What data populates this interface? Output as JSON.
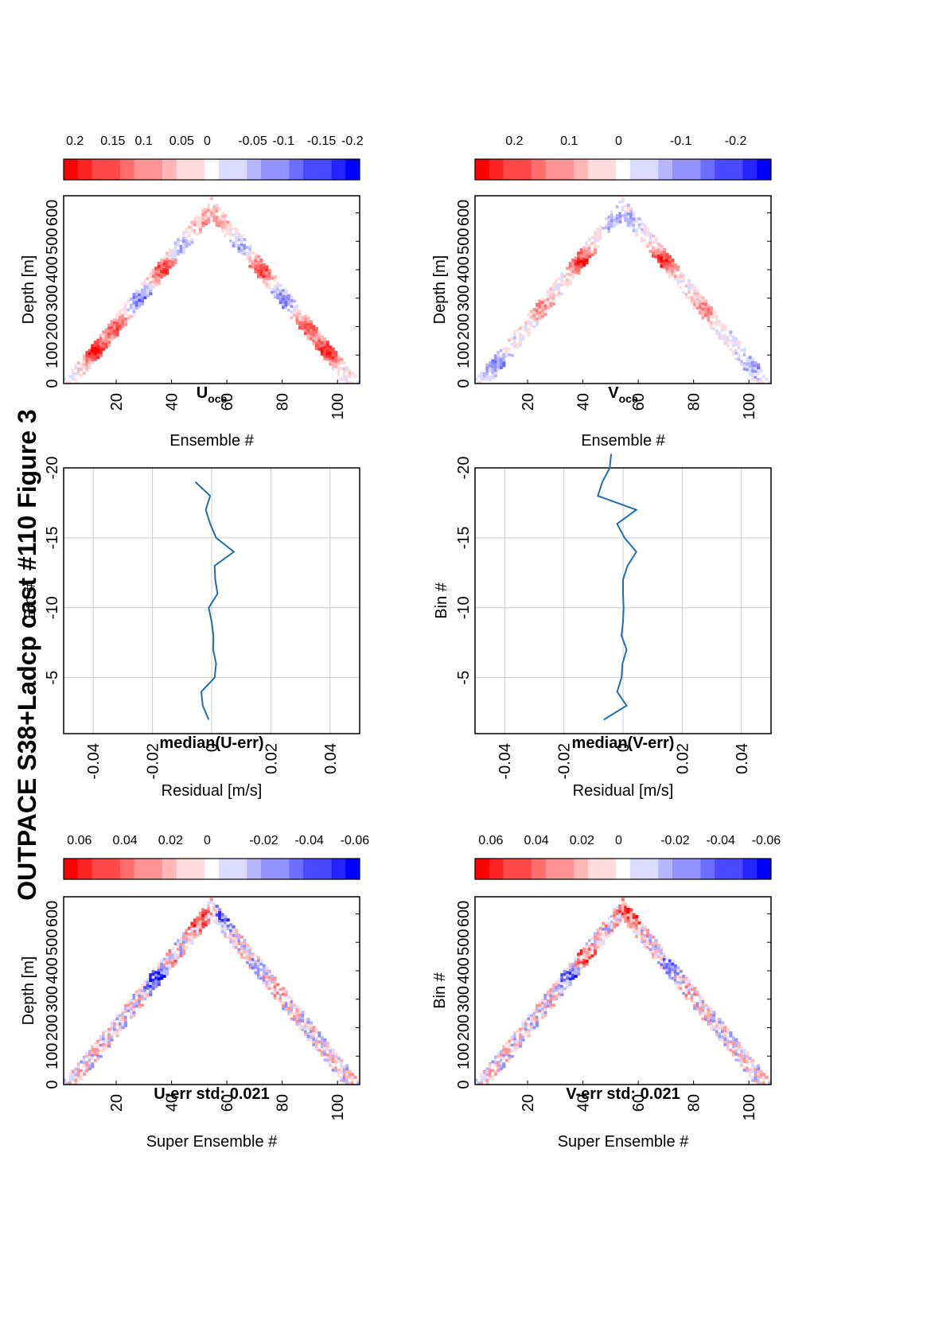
{
  "figure_title": "OUTPACE S38+Ladcp cast #110  Figure 3",
  "chart_data": [
    {
      "id": "u_err",
      "type": "heatmap",
      "title": "U-err std: 0.021",
      "xlabel": "Super Ensemble #",
      "ylabel": "Depth [m]",
      "xlim": [
        1,
        108
      ],
      "ylim": [
        0,
        660
      ],
      "xticks": [
        "20",
        "40",
        "60",
        "80",
        "100"
      ],
      "yticks": [
        "0",
        "100",
        "200",
        "300",
        "400",
        "500",
        "600"
      ],
      "colorbar": {
        "range": [
          -0.065,
          0.065
        ],
        "ticks": [
          "0.06",
          "0.04",
          "0.02",
          "0",
          "-0.02",
          "-0.04",
          "-0.06"
        ],
        "colormap": "red-white-blue"
      },
      "profile": {
        "turn_ensemble": 54,
        "max_depth": 650,
        "band_width_m": 65
      },
      "features": [
        {
          "x": 36,
          "y": 360,
          "v": -0.06
        },
        {
          "x": 45,
          "y": 400,
          "v": 0.05
        },
        {
          "x": 78,
          "y": 420,
          "v": -0.065
        },
        {
          "x": 80,
          "y": 390,
          "v": 0.06
        },
        {
          "x": 60,
          "y": 590,
          "v": -0.05
        },
        {
          "x": 50,
          "y": 580,
          "v": 0.05
        }
      ]
    },
    {
      "id": "median_u",
      "type": "line",
      "title": "median(U-err)",
      "xlabel": "Residual [m/s]",
      "ylabel": "Bin #",
      "xlim": [
        -0.05,
        0.05
      ],
      "ylim": [
        -20,
        -1
      ],
      "xticks": [
        "-0.04",
        "-0.02",
        "0",
        "0.02",
        "0.04"
      ],
      "yticks": [
        "-5",
        "-10",
        "-15",
        "-20"
      ],
      "x": [
        -0.001,
        -0.003,
        -0.0035,
        0.001,
        0.0015,
        0.0005,
        0.0006,
        0.0,
        -0.001,
        0.002,
        0.0012,
        0.001,
        0.0075,
        0.0015,
        -0.0005,
        -0.002,
        -0.0005,
        -0.0055
      ],
      "y": [
        -2,
        -3,
        -4,
        -5,
        -6,
        -7,
        -8,
        -9,
        -10,
        -11,
        -12,
        -13,
        -14,
        -15,
        -16,
        -17,
        -18,
        -19
      ]
    },
    {
      "id": "u_oce",
      "type": "heatmap",
      "title": "U",
      "title_sub": "oce",
      "xlabel": "Ensemble #",
      "ylabel": "Depth [m]",
      "xlim": [
        1,
        108
      ],
      "ylim": [
        0,
        660
      ],
      "xticks": [
        "20",
        "40",
        "60",
        "80",
        "100"
      ],
      "yticks": [
        "0",
        "100",
        "200",
        "300",
        "400",
        "500",
        "600"
      ],
      "colorbar": {
        "range": [
          -0.215,
          0.215
        ],
        "ticks": [
          "0.2",
          "0.15",
          "0.1",
          "0.05",
          "0",
          "-0.05",
          "-0.1",
          "-0.15",
          "-0.2"
        ],
        "colormap": "red-white-blue"
      },
      "profile": {
        "turn_ensemble": 54,
        "max_depth": 650,
        "band_width_m": 65
      },
      "features": [
        {
          "x": 12,
          "y": 110,
          "v": 0.2
        },
        {
          "x": 96,
          "y": 110,
          "v": 0.19
        },
        {
          "x": 21,
          "y": 190,
          "v": 0.15
        },
        {
          "x": 88,
          "y": 190,
          "v": 0.15
        },
        {
          "x": 30,
          "y": 285,
          "v": -0.12
        },
        {
          "x": 78,
          "y": 285,
          "v": -0.12
        },
        {
          "x": 38,
          "y": 390,
          "v": 0.18
        },
        {
          "x": 71,
          "y": 390,
          "v": 0.18
        },
        {
          "x": 46,
          "y": 460,
          "v": -0.08
        },
        {
          "x": 63,
          "y": 460,
          "v": -0.08
        },
        {
          "x": 54,
          "y": 560,
          "v": 0.1
        }
      ]
    },
    {
      "id": "v_err",
      "type": "heatmap",
      "title": "V-err std: 0.021",
      "xlabel": "Super Ensemble #",
      "ylabel": "Bin #",
      "xlim": [
        1,
        108
      ],
      "ylim": [
        0,
        660
      ],
      "xticks": [
        "20",
        "40",
        "60",
        "80",
        "100"
      ],
      "yticks": [
        "0",
        "100",
        "200",
        "300",
        "400",
        "500",
        "600"
      ],
      "colorbar": {
        "range": [
          -0.065,
          0.065
        ],
        "ticks": [
          "0.06",
          "0.04",
          "0.02",
          "0",
          "-0.02",
          "-0.04",
          "-0.06"
        ],
        "colormap": "red-white-blue"
      },
      "profile": {
        "turn_ensemble": 54,
        "max_depth": 650,
        "band_width_m": 65
      },
      "features": [
        {
          "x": 38,
          "y": 370,
          "v": -0.05
        },
        {
          "x": 42,
          "y": 430,
          "v": 0.05
        },
        {
          "x": 76,
          "y": 430,
          "v": -0.06
        },
        {
          "x": 82,
          "y": 400,
          "v": 0.06
        },
        {
          "x": 58,
          "y": 600,
          "v": 0.05
        }
      ]
    },
    {
      "id": "median_v",
      "type": "line",
      "title": "median(V-err)",
      "xlabel": "Residual [m/s]",
      "ylabel": "Bin #",
      "xlim": [
        -0.05,
        0.05
      ],
      "ylim": [
        -20,
        -1
      ],
      "xticks": [
        "-0.04",
        "-0.02",
        "0",
        "0.02",
        "0.04"
      ],
      "yticks": [
        "-5",
        "-10",
        "-15",
        "-20"
      ],
      "x": [
        -0.0065,
        0.0012,
        -0.002,
        -0.0005,
        -0.0002,
        0.0012,
        -0.0005,
        0.0,
        0.0002,
        0.0,
        0.0,
        0.0015,
        0.0045,
        0.0005,
        -0.002,
        0.0045,
        -0.0085,
        -0.007,
        -0.0045,
        -0.004
      ],
      "y": [
        -2,
        -3,
        -4,
        -5,
        -6,
        -7,
        -8,
        -9,
        -10,
        -11,
        -12,
        -13,
        -14,
        -15,
        -16,
        -17,
        -18,
        -19,
        -20,
        -21
      ]
    },
    {
      "id": "v_oce",
      "type": "heatmap",
      "title": "V",
      "title_sub": "oce",
      "xlabel": "Ensemble #",
      "ylabel": "Depth [m]",
      "xlim": [
        1,
        108
      ],
      "ylim": [
        0,
        660
      ],
      "xticks": [
        "20",
        "40",
        "60",
        "80",
        "100"
      ],
      "yticks": [
        "0",
        "100",
        "200",
        "300",
        "400",
        "500",
        "600"
      ],
      "colorbar": {
        "range": [
          -0.27,
          0.27
        ],
        "ticks": [
          "0.2",
          "0.1",
          "0",
          "-0.1",
          "-0.2"
        ],
        "colormap": "red-white-blue"
      },
      "profile": {
        "turn_ensemble": 54,
        "max_depth": 650,
        "band_width_m": 65
      },
      "features": [
        {
          "x": 8,
          "y": 60,
          "v": -0.12
        },
        {
          "x": 102,
          "y": 60,
          "v": -0.1
        },
        {
          "x": 24,
          "y": 260,
          "v": 0.12
        },
        {
          "x": 84,
          "y": 260,
          "v": 0.12
        },
        {
          "x": 40,
          "y": 420,
          "v": 0.24
        },
        {
          "x": 68,
          "y": 420,
          "v": 0.24
        },
        {
          "x": 54,
          "y": 560,
          "v": -0.1
        }
      ]
    }
  ]
}
